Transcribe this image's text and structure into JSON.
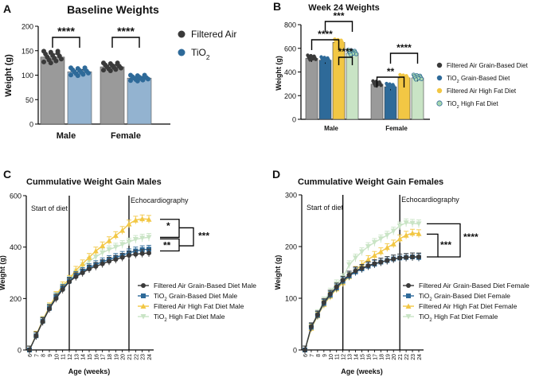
{
  "colors": {
    "filtered_grain": "#3a3a3a",
    "tio2_grain": "#2e6a99",
    "filtered_hf": "#f2c744",
    "tio2_hf": "#c9e4c5",
    "gray_bar": "#9a9a9a",
    "blue_bar": "#93b3d0",
    "light_green_marker": "#a9d8b0"
  },
  "chart_data": [
    {
      "panel_letter": "A",
      "type": "bar",
      "title": "Baseline Weights",
      "xlabel": "",
      "ylabel": "Weight (g)",
      "ylim": [
        0,
        200
      ],
      "yticks": [
        "0",
        "50",
        "100",
        "150",
        "200"
      ],
      "categories": [
        "Male",
        "Female"
      ],
      "series": [
        {
          "name": "Filtered Air",
          "values": [
            137,
            117
          ],
          "sem": [
            6,
            4
          ]
        },
        {
          "name": "TiO",
          "subscript": "2",
          "values": [
            107,
            94
          ],
          "sem": [
            4,
            3
          ]
        }
      ],
      "significance": [
        "****",
        "****"
      ],
      "legend": "right"
    },
    {
      "panel_letter": "B",
      "type": "bar",
      "title": "Week 24 Weights",
      "xlabel": "",
      "ylabel": "Weight (g)",
      "ylim": [
        0,
        800
      ],
      "yticks": [
        "0",
        "200",
        "400",
        "600",
        "800"
      ],
      "categories": [
        "Male",
        "Female"
      ],
      "series": [
        {
          "name": "Filtered Air Grain-Based Diet",
          "values": [
            515,
            297
          ]
        },
        {
          "name": "TiO",
          "subscript": "2",
          "name_suffix": " Grain-Based Diet",
          "values": [
            500,
            275
          ]
        },
        {
          "name": "Filtered Air High Fat Diet",
          "values": [
            650,
            350
          ]
        },
        {
          "name": "TiO",
          "subscript": "2",
          "name_suffix": " High Fat Diet",
          "values": [
            560,
            350
          ]
        }
      ],
      "significance": [
        "****",
        "***",
        "****",
        "**",
        "****"
      ],
      "legend": "right"
    },
    {
      "panel_letter": "C",
      "type": "line",
      "title": "Cummulative Weight Gain Males",
      "xlabel": "Age (weeks)",
      "ylabel": "Weight (g)",
      "ylim": [
        0,
        600
      ],
      "yticks": [
        "0",
        "200",
        "400",
        "600"
      ],
      "x": [
        6,
        7,
        8,
        9,
        10,
        11,
        12,
        13,
        14,
        15,
        16,
        17,
        18,
        19,
        20,
        21,
        22,
        23,
        24
      ],
      "series": [
        {
          "name": "Filtered Air Grain-Based Diet Male",
          "values": [
            0,
            55,
            110,
            160,
            200,
            235,
            265,
            285,
            300,
            315,
            325,
            335,
            345,
            352,
            360,
            368,
            372,
            375,
            377
          ]
        },
        {
          "name": "TiO",
          "subscript": "2",
          "name_suffix": " Grain-Based Diet Male",
          "values": [
            0,
            55,
            112,
            162,
            205,
            240,
            268,
            290,
            305,
            320,
            332,
            343,
            352,
            360,
            368,
            378,
            385,
            390,
            392
          ]
        },
        {
          "name": "Filtered Air High Fat Diet Male",
          "values": [
            0,
            58,
            115,
            168,
            212,
            250,
            275,
            310,
            335,
            360,
            385,
            405,
            425,
            445,
            465,
            490,
            505,
            510,
            508
          ]
        },
        {
          "name": "TiO",
          "subscript": "2",
          "name_suffix": " High Fat Diet Male",
          "values": [
            0,
            56,
            113,
            165,
            208,
            244,
            270,
            300,
            325,
            345,
            362,
            378,
            390,
            400,
            410,
            420,
            430,
            435,
            438
          ]
        }
      ],
      "vertical_markers": [
        {
          "x": 12,
          "label": "Start of diet"
        },
        {
          "x": 21,
          "label": "Echocardiography"
        }
      ],
      "significance": [
        "*",
        "**",
        "***"
      ],
      "legend": "bottom-right"
    },
    {
      "panel_letter": "D",
      "type": "line",
      "title": "Cummulative Weight Gain Females",
      "xlabel": "Age (weeks)",
      "ylabel": "Weight (g)",
      "ylim": [
        0,
        300
      ],
      "yticks": [
        "0",
        "100",
        "200",
        "300"
      ],
      "x": [
        6,
        7,
        8,
        9,
        10,
        11,
        12,
        13,
        14,
        15,
        16,
        17,
        18,
        19,
        20,
        21,
        22,
        23,
        24
      ],
      "series": [
        {
          "name": "Filtered Air Grain-Based Diet Female",
          "values": [
            0,
            45,
            68,
            92,
            108,
            122,
            135,
            145,
            153,
            158,
            163,
            167,
            170,
            173,
            176,
            178,
            179,
            180,
            180
          ]
        },
        {
          "name": "TiO",
          "subscript": "2",
          "name_suffix": " Grain-Based Diet Female",
          "values": [
            0,
            44,
            67,
            90,
            106,
            120,
            133,
            143,
            151,
            157,
            162,
            166,
            170,
            173,
            176,
            178,
            179,
            180,
            179
          ]
        },
        {
          "name": "Filtered Air High Fat Diet Female",
          "values": [
            0,
            42,
            66,
            88,
            104,
            118,
            130,
            142,
            154,
            165,
            175,
            183,
            190,
            198,
            205,
            215,
            222,
            226,
            225
          ]
        },
        {
          "name": "TiO",
          "subscript": "2",
          "name_suffix": " High Fat Diet Female",
          "values": [
            0,
            43,
            70,
            95,
            112,
            128,
            140,
            165,
            178,
            190,
            200,
            208,
            215,
            222,
            230,
            240,
            246,
            245,
            244
          ]
        }
      ],
      "vertical_markers": [
        {
          "x": 12,
          "label": "Start of diet"
        },
        {
          "x": 21,
          "label": "Echocardiography"
        }
      ],
      "significance": [
        "***",
        "****"
      ],
      "legend": "bottom-right"
    }
  ]
}
